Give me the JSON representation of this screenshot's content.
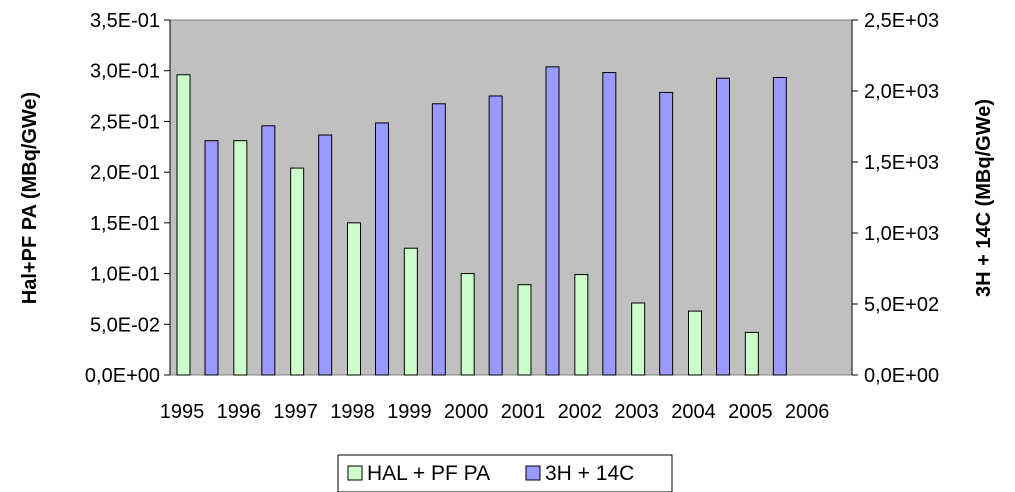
{
  "chart_data": {
    "type": "bar",
    "categories": [
      "1995",
      "1996",
      "1997",
      "1998",
      "1999",
      "2000",
      "2001",
      "2002",
      "2003",
      "2004",
      "2005",
      "2006"
    ],
    "series": [
      {
        "name": "HAL + PF PA",
        "axis": "left",
        "color": "#ccffcc",
        "values": [
          0.296,
          0.231,
          0.204,
          0.15,
          0.125,
          0.1,
          0.089,
          0.099,
          0.071,
          0.063,
          0.042,
          null
        ]
      },
      {
        "name": "3H + 14C",
        "axis": "right",
        "color": "#9999ff",
        "values": [
          1650,
          1755,
          1690,
          1775,
          1910,
          1965,
          2170,
          2130,
          1990,
          2090,
          2095,
          null
        ]
      }
    ],
    "ylabel": "Hal+PF PA (MBq/GWe)",
    "y2label": "3H + 14C (MBq/GWe)",
    "ylim": [
      0,
      0.35
    ],
    "y2lim": [
      0,
      2500
    ],
    "yticks": [
      "0,0E+00",
      "5,0E-02",
      "1,0E-01",
      "1,5E-01",
      "2,0E-01",
      "2,5E-01",
      "3,0E-01",
      "3,5E-01"
    ],
    "y2ticks": [
      "0,0E+00",
      "5,0E+02",
      "1,0E+03",
      "1,5E+03",
      "2,0E+03",
      "2,5E+03"
    ],
    "plot_background": "#c0c0c0",
    "grid": false,
    "legend_position": "bottom"
  }
}
